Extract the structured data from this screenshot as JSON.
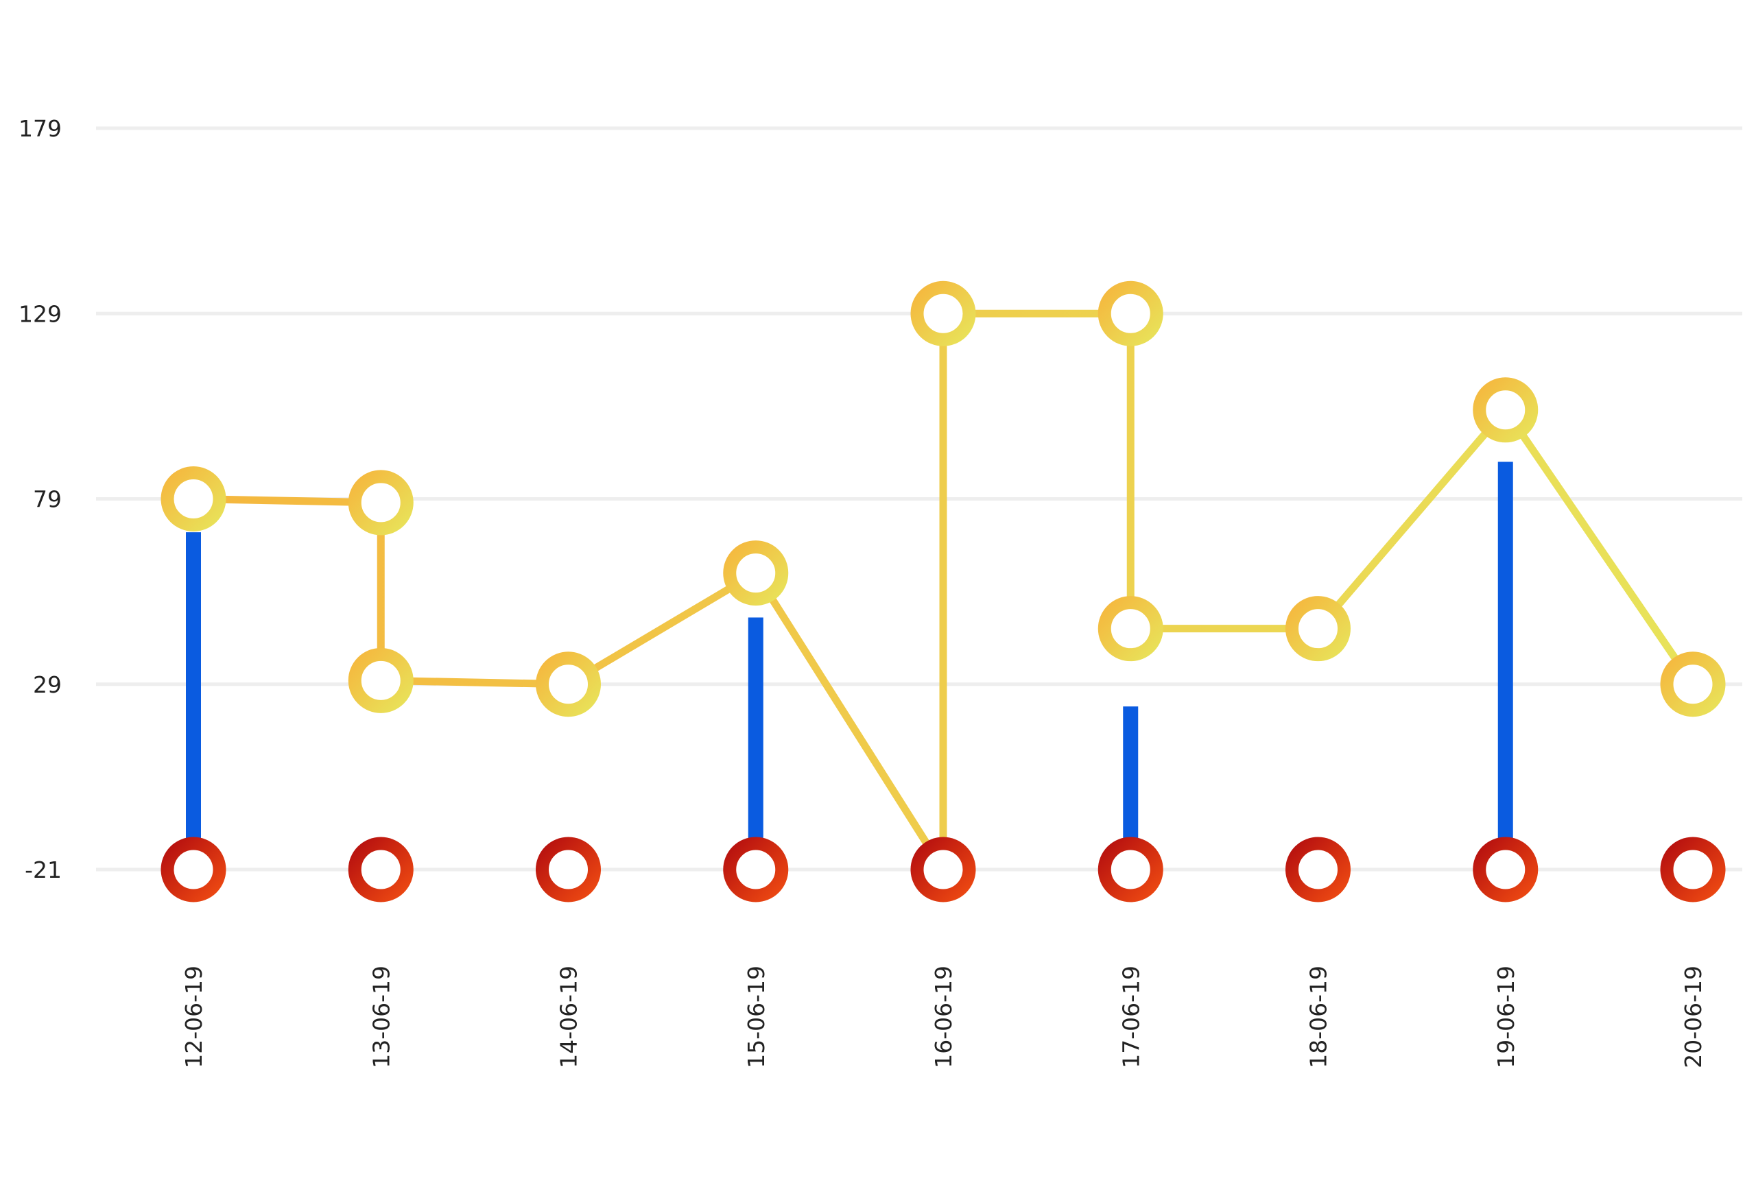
{
  "chart_data": {
    "type": "line",
    "title": "",
    "xlabel": "",
    "ylabel": "",
    "grid": true,
    "legend": "none",
    "categories": [
      "12-06-19",
      "13-06-19",
      "14-06-19",
      "15-06-19",
      "16-06-19",
      "17-06-19",
      "18-06-19",
      "19-06-19",
      "20-06-19"
    ],
    "y_ticks": [
      179,
      129,
      79,
      29,
      -21
    ],
    "ylim": [
      -21,
      179
    ],
    "series": [
      {
        "kind": "step-line",
        "color_start": "#f5b73e",
        "color_end": "#e8e35a",
        "points": [
          {
            "x": "12-06-19",
            "y": 79
          },
          {
            "x": "13-06-19",
            "y": 78
          },
          {
            "x": "13-06-19",
            "y": 30
          },
          {
            "x": "14-06-19",
            "y": 29
          },
          {
            "x": "15-06-19",
            "y": 59
          },
          {
            "x": "16-06-19",
            "y": -21
          },
          {
            "x": "16-06-19",
            "y": 129
          },
          {
            "x": "17-06-19",
            "y": 129
          },
          {
            "x": "17-06-19",
            "y": 44
          },
          {
            "x": "18-06-19",
            "y": 44
          },
          {
            "x": "19-06-19",
            "y": 103
          },
          {
            "x": "20-06-19",
            "y": 29
          }
        ],
        "markers": [
          {
            "x": "12-06-19",
            "y": 79
          },
          {
            "x": "13-06-19",
            "y": 78
          },
          {
            "x": "13-06-19",
            "y": 30
          },
          {
            "x": "14-06-19",
            "y": 29
          },
          {
            "x": "15-06-19",
            "y": 59
          },
          {
            "x": "16-06-19",
            "y": 129
          },
          {
            "x": "17-06-19",
            "y": 129
          },
          {
            "x": "17-06-19",
            "y": 44
          },
          {
            "x": "18-06-19",
            "y": 44
          },
          {
            "x": "19-06-19",
            "y": 103
          },
          {
            "x": "20-06-19",
            "y": 29
          }
        ]
      },
      {
        "kind": "bar",
        "color": "#0a5be0",
        "values": [
          70,
          null,
          null,
          47,
          null,
          23,
          null,
          89,
          null
        ]
      },
      {
        "kind": "line",
        "color_start": "#b50f0f",
        "color_end": "#ee4a12",
        "values": [
          -21,
          -21,
          -21,
          -21,
          -21,
          -21,
          -21,
          -21,
          -21
        ]
      }
    ]
  }
}
